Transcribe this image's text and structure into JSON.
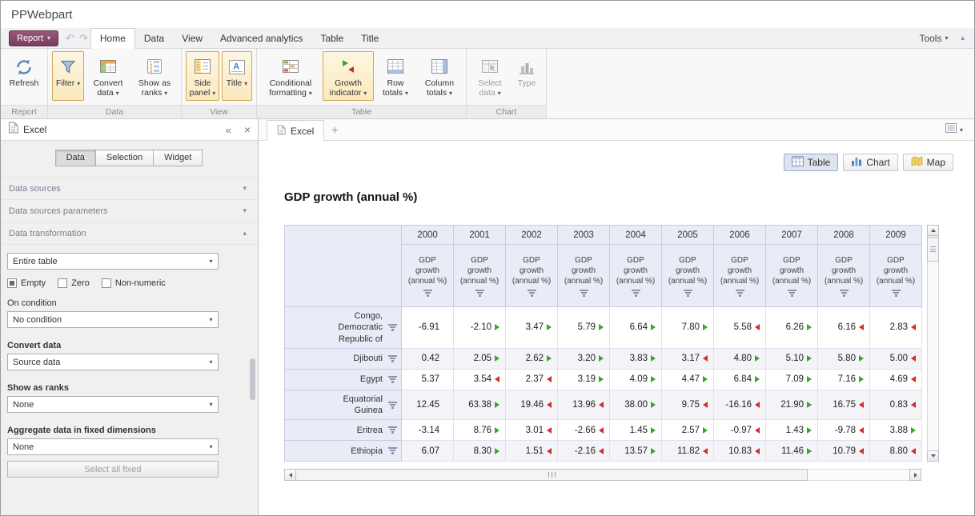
{
  "app": {
    "title": "PPWebpart"
  },
  "menubar": {
    "report_button_label": "Report",
    "tabs": [
      {
        "label": "Home",
        "active": true
      },
      {
        "label": "Data",
        "active": false
      },
      {
        "label": "View",
        "active": false
      },
      {
        "label": "Advanced analytics",
        "active": false
      },
      {
        "label": "Table",
        "active": false
      },
      {
        "label": "Title",
        "active": false
      }
    ],
    "tools_label": "Tools"
  },
  "ribbon": {
    "group_labels": [
      "Report",
      "Data",
      "View",
      "Table",
      "Chart"
    ],
    "buttons": {
      "refresh": "Refresh",
      "filter": "Filter",
      "convert_data": "Convert data",
      "show_as_ranks": "Show as ranks",
      "side_panel": "Side panel",
      "title": "Title",
      "conditional_formatting": "Conditional formatting",
      "growth_indicator": "Growth indicator",
      "row_totals": "Row totals",
      "column_totals": "Column totals",
      "select_data": "Select data",
      "type": "Type"
    },
    "selected_buttons": [
      "filter",
      "side_panel",
      "title",
      "growth_indicator"
    ],
    "disabled_buttons": [
      "select_data",
      "type"
    ]
  },
  "sidebar": {
    "title": "Excel",
    "tabs": [
      {
        "label": "Data",
        "active": true
      },
      {
        "label": "Selection",
        "active": false
      },
      {
        "label": "Widget",
        "active": false
      }
    ],
    "sections": [
      {
        "label": "Data sources",
        "expanded": false
      },
      {
        "label": "Data sources parameters",
        "expanded": false
      },
      {
        "label": "Data transformation",
        "expanded": true
      }
    ],
    "transformation": {
      "scope_value": "Entire table",
      "checkboxes": [
        {
          "label": "Empty",
          "checked": true
        },
        {
          "label": "Zero",
          "checked": false
        },
        {
          "label": "Non-numeric",
          "checked": false
        }
      ],
      "on_condition_label": "On condition",
      "condition_value": "No condition",
      "convert_label": "Convert data",
      "convert_value": "Source data",
      "ranks_label": "Show as ranks",
      "ranks_value": "None",
      "aggregate_label": "Aggregate data in fixed dimensions",
      "aggregate_value": "None",
      "select_all_fixed": "Select all fixed"
    }
  },
  "content": {
    "tab_label": "Excel",
    "view_switch": [
      {
        "label": "Table",
        "active": true
      },
      {
        "label": "Chart",
        "active": false
      },
      {
        "label": "Map",
        "active": false
      }
    ],
    "title": "GDP growth (annual %)"
  },
  "table": {
    "measure": "GDP growth (annual %)",
    "years": [
      "2000",
      "2001",
      "2002",
      "2003",
      "2004",
      "2005",
      "2006",
      "2007",
      "2008",
      "2009"
    ],
    "colors": {
      "up": "#3fa22c",
      "down": "#cf2e2e"
    },
    "rows": [
      {
        "name": "Congo, Democratic Republic of",
        "values": [
          "-6.91",
          "-2.10",
          "3.47",
          "5.79",
          "6.64",
          "7.80",
          "5.58",
          "6.26",
          "6.16",
          "2.83"
        ],
        "trend": [
          "",
          "up",
          "up",
          "up",
          "up",
          "up",
          "down",
          "up",
          "down",
          "down"
        ]
      },
      {
        "name": "Djibouti",
        "values": [
          "0.42",
          "2.05",
          "2.62",
          "3.20",
          "3.83",
          "3.17",
          "4.80",
          "5.10",
          "5.80",
          "5.00"
        ],
        "trend": [
          "",
          "up",
          "up",
          "up",
          "up",
          "down",
          "up",
          "up",
          "up",
          "down"
        ]
      },
      {
        "name": "Egypt",
        "values": [
          "5.37",
          "3.54",
          "2.37",
          "3.19",
          "4.09",
          "4.47",
          "6.84",
          "7.09",
          "7.16",
          "4.69"
        ],
        "trend": [
          "",
          "down",
          "down",
          "up",
          "up",
          "up",
          "up",
          "up",
          "up",
          "down"
        ]
      },
      {
        "name": "Equatorial Guinea",
        "values": [
          "12.45",
          "63.38",
          "19.46",
          "13.96",
          "38.00",
          "9.75",
          "-16.16",
          "21.90",
          "16.75",
          "0.83"
        ],
        "trend": [
          "",
          "up",
          "down",
          "down",
          "up",
          "down",
          "down",
          "up",
          "down",
          "down"
        ]
      },
      {
        "name": "Eritrea",
        "values": [
          "-3.14",
          "8.76",
          "3.01",
          "-2.66",
          "1.45",
          "2.57",
          "-0.97",
          "1.43",
          "-9.78",
          "3.88"
        ],
        "trend": [
          "",
          "up",
          "down",
          "down",
          "up",
          "up",
          "down",
          "up",
          "down",
          "up"
        ]
      },
      {
        "name": "Ethiopia",
        "values": [
          "6.07",
          "8.30",
          "1.51",
          "-2.16",
          "13.57",
          "11.82",
          "10.83",
          "11.46",
          "10.79",
          "8.80"
        ],
        "trend": [
          "",
          "up",
          "down",
          "down",
          "up",
          "down",
          "down",
          "up",
          "down",
          "down"
        ]
      }
    ]
  }
}
